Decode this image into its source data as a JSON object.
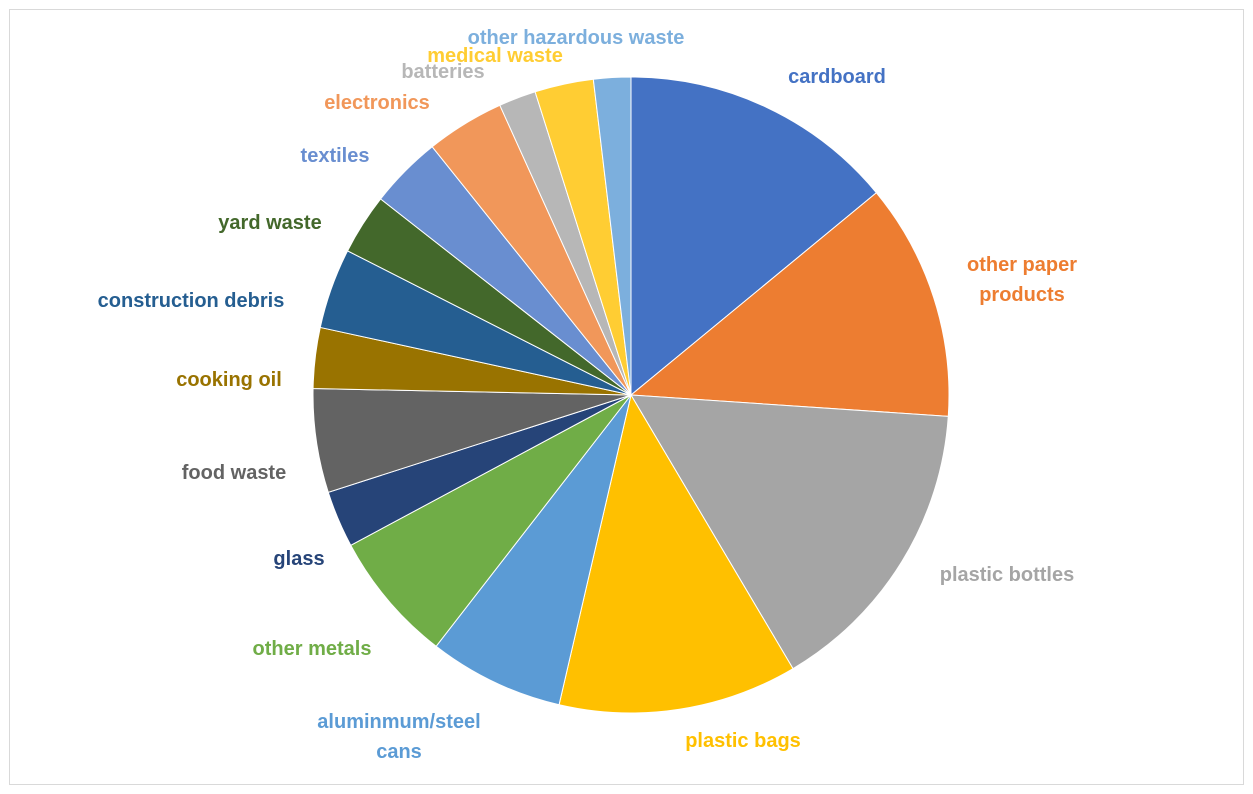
{
  "chart_data": {
    "type": "pie",
    "start_angle_deg": 0,
    "direction": "clockwise",
    "slices": [
      {
        "label": "cardboard",
        "value": 14.1,
        "color": "#4472c4"
      },
      {
        "label": "other paper products",
        "value": 12.1,
        "color": "#ed7d31"
      },
      {
        "label": "plastic bottles",
        "value": 15.5,
        "color": "#a5a5a5"
      },
      {
        "label": "plastic bags",
        "value": 12.2,
        "color": "#ffc000"
      },
      {
        "label": "aluminmum/steel cans",
        "value": 6.9,
        "color": "#5b9bd5"
      },
      {
        "label": "other metals",
        "value": 6.7,
        "color": "#70ad47"
      },
      {
        "label": "glass",
        "value": 2.9,
        "color": "#264478"
      },
      {
        "label": "food waste",
        "value": 5.3,
        "color": "#636363"
      },
      {
        "label": "cooking oil",
        "value": 3.1,
        "color": "#997300"
      },
      {
        "label": "construction debris",
        "value": 4.1,
        "color": "#255e91"
      },
      {
        "label": "yard waste",
        "value": 3.1,
        "color": "#43682b"
      },
      {
        "label": "textiles",
        "value": 3.7,
        "color": "#698ed0"
      },
      {
        "label": "electronics",
        "value": 4.0,
        "color": "#f1975a"
      },
      {
        "label": "batteries",
        "value": 1.9,
        "color": "#b7b7b7"
      },
      {
        "label": "medical waste",
        "value": 3.0,
        "color": "#ffcd33"
      },
      {
        "label": "other hazardous waste",
        "value": 1.9,
        "color": "#7cafdd"
      }
    ]
  }
}
